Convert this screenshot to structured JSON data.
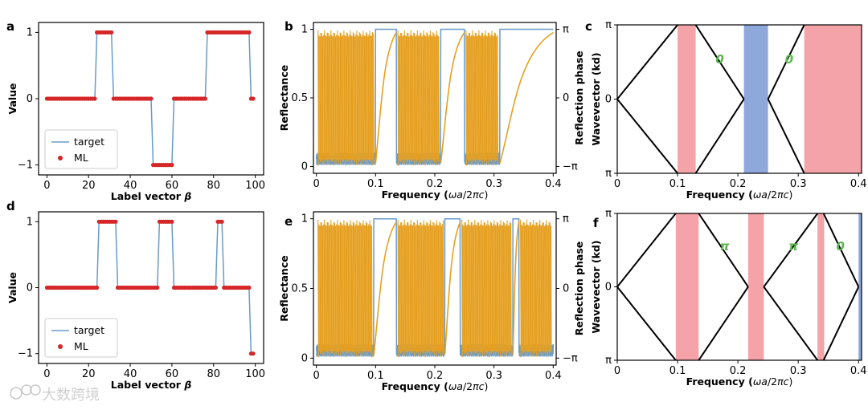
{
  "watermark": "大数跨境",
  "colors": {
    "target": "#6a9bc8",
    "ml": "#d62728",
    "phase": "#e6a021",
    "pink": "#f4a3a8",
    "blue": "#8fa8dc",
    "band": "#000000",
    "green": "#5ab84e"
  },
  "chart_data": [
    {
      "panel": "a",
      "type": "line",
      "title": "",
      "xlabel": "Label vector β",
      "ylabel": "Value",
      "xlim": [
        -4,
        104
      ],
      "ylim": [
        -1.15,
        1.15
      ],
      "xticks": [
        0,
        20,
        40,
        60,
        80,
        100
      ],
      "yticks": [
        -1,
        0,
        1
      ],
      "legend": {
        "position": "lower-left",
        "entries": [
          "target",
          "ML"
        ]
      },
      "series": [
        {
          "name": "target",
          "style": "line"
        },
        {
          "name": "ML",
          "style": "dots"
        }
      ],
      "segments": [
        {
          "from": 0,
          "to": 24,
          "value": 0
        },
        {
          "from": 24,
          "to": 32,
          "value": 1
        },
        {
          "from": 32,
          "to": 51,
          "value": 0
        },
        {
          "from": 51,
          "to": 61,
          "value": -1
        },
        {
          "from": 61,
          "to": 77,
          "value": 0
        },
        {
          "from": 77,
          "to": 98,
          "value": 1
        },
        {
          "from": 98,
          "to": 100,
          "value": 0
        }
      ],
      "ml_override": {
        "99": 0
      }
    },
    {
      "panel": "d",
      "type": "line",
      "title": "",
      "xlabel": "Label vector β",
      "ylabel": "Value",
      "xlim": [
        -4,
        104
      ],
      "ylim": [
        -1.15,
        1.15
      ],
      "xticks": [
        0,
        20,
        40,
        60,
        80,
        100
      ],
      "yticks": [
        -1,
        0,
        1
      ],
      "legend": {
        "position": "lower-left",
        "entries": [
          "target",
          "ML"
        ]
      },
      "series": [
        {
          "name": "target",
          "style": "line"
        },
        {
          "name": "ML",
          "style": "dots"
        }
      ],
      "segments": [
        {
          "from": 0,
          "to": 25,
          "value": 0
        },
        {
          "from": 25,
          "to": 34,
          "value": 1
        },
        {
          "from": 34,
          "to": 54,
          "value": 0
        },
        {
          "from": 54,
          "to": 61,
          "value": 1
        },
        {
          "from": 61,
          "to": 82,
          "value": 0
        },
        {
          "from": 82,
          "to": 85,
          "value": 1
        },
        {
          "from": 85,
          "to": 98,
          "value": 0
        },
        {
          "from": 98,
          "to": 100,
          "value": -1
        }
      ],
      "ml_override": {
        "99": -1
      }
    },
    {
      "panel": "b",
      "type": "line",
      "xlabel": "Frequency (ωa/2πc)",
      "ylabel": "Reflectance",
      "ylabel_right": "Reflection phase",
      "xlim": [
        -0.005,
        0.405
      ],
      "ylim": [
        -0.05,
        1.05
      ],
      "xticks": [
        0,
        0.1,
        0.2,
        0.3,
        0.4
      ],
      "yticks": [
        0,
        0.5,
        1
      ],
      "yticks_right": [
        "−π",
        "0",
        "π"
      ],
      "series": [
        {
          "name": "Reflectance"
        },
        {
          "name": "Reflection phase"
        }
      ],
      "stopbands": [
        [
          0.1,
          0.135
        ],
        [
          0.21,
          0.25
        ],
        [
          0.31,
          0.4
        ]
      ],
      "passbands": [
        [
          0,
          0.1
        ],
        [
          0.135,
          0.21
        ],
        [
          0.25,
          0.31
        ]
      ]
    },
    {
      "panel": "e",
      "type": "line",
      "xlabel": "Frequency (ωa/2πc)",
      "ylabel": "Reflectance",
      "ylabel_right": "Reflection phase",
      "xlim": [
        -0.005,
        0.405
      ],
      "ylim": [
        -0.05,
        1.05
      ],
      "xticks": [
        0,
        0.1,
        0.2,
        0.3,
        0.4
      ],
      "yticks": [
        0,
        0.5,
        1
      ],
      "yticks_right": [
        "−π",
        "0",
        "π"
      ],
      "series": [
        {
          "name": "Reflectance"
        },
        {
          "name": "Reflection phase"
        }
      ],
      "stopbands": [
        [
          0.097,
          0.135
        ],
        [
          0.217,
          0.243
        ],
        [
          0.332,
          0.342
        ]
      ],
      "passbands": [
        [
          0,
          0.097
        ],
        [
          0.135,
          0.217
        ],
        [
          0.243,
          0.332
        ],
        [
          0.342,
          0.4
        ]
      ]
    },
    {
      "panel": "c",
      "type": "line",
      "xlabel": "Frequency (ωa/2πc)",
      "ylabel": "Wavevector (kd)",
      "xlim": [
        0,
        0.405
      ],
      "ylim": [
        -1,
        1
      ],
      "xticks": [
        0,
        0.1,
        0.2,
        0.3,
        0.4
      ],
      "yticks": [
        "π",
        "0",
        "π"
      ],
      "passbands": [
        [
          0,
          0.1
        ],
        [
          0.13,
          0.21
        ],
        [
          0.25,
          0.31
        ]
      ],
      "gaps": [
        {
          "from": 0.1,
          "to": 0.13,
          "color": "pink"
        },
        {
          "from": 0.21,
          "to": 0.25,
          "color": "blue"
        },
        {
          "from": 0.31,
          "to": 0.405,
          "color": "pink"
        }
      ],
      "annotations": [
        {
          "text": "0",
          "x": 0.17,
          "y": 0.48
        },
        {
          "text": "0",
          "x": 0.285,
          "y": 0.48
        }
      ]
    },
    {
      "panel": "f",
      "type": "line",
      "xlabel": "Frequency (ωa/2πc)",
      "ylabel": "Wavevector (kd)",
      "xlim": [
        0,
        0.405
      ],
      "ylim": [
        -1,
        1
      ],
      "xticks": [
        0,
        0.1,
        0.2,
        0.3,
        0.4
      ],
      "yticks": [
        "π",
        "0",
        "π"
      ],
      "passbands": [
        [
          0,
          0.097
        ],
        [
          0.135,
          0.217
        ],
        [
          0.243,
          0.332
        ],
        [
          0.342,
          0.4
        ]
      ],
      "gaps": [
        {
          "from": 0.097,
          "to": 0.135,
          "color": "pink"
        },
        {
          "from": 0.217,
          "to": 0.243,
          "color": "pink"
        },
        {
          "from": 0.332,
          "to": 0.343,
          "color": "pink"
        },
        {
          "from": 0.4,
          "to": 0.405,
          "color": "blue"
        }
      ],
      "annotations": [
        {
          "text": "π",
          "x": 0.178,
          "y": 0.5
        },
        {
          "text": "π",
          "x": 0.292,
          "y": 0.5
        },
        {
          "text": "0",
          "x": 0.37,
          "y": 0.5
        }
      ]
    }
  ]
}
